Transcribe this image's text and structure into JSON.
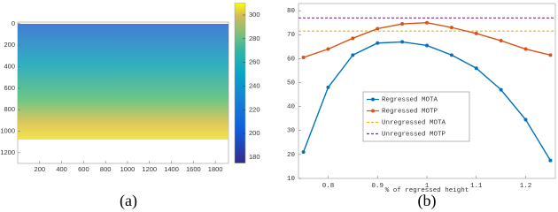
{
  "chart_data": [
    {
      "type": "image",
      "caption": "(a)",
      "xlim": [
        0,
        1920
      ],
      "xticks": [
        200,
        400,
        600,
        800,
        1000,
        1200,
        1400,
        1600,
        1800
      ],
      "ylim": [
        -15,
        1300
      ],
      "y_reverse": true,
      "yticks": [
        0,
        200,
        400,
        600,
        800,
        1000,
        1200
      ],
      "colorbar": {
        "lim": [
          175,
          310
        ],
        "ticks": [
          180,
          200,
          220,
          240,
          260,
          280,
          300
        ]
      }
    },
    {
      "type": "line",
      "caption": "(b)",
      "xlabel": "% of regressed height",
      "x": [
        0.75,
        0.8,
        0.85,
        0.9,
        0.95,
        1.0,
        1.05,
        1.1,
        1.15,
        1.2,
        1.25
      ],
      "series": [
        {
          "name": "Regressed MOTA",
          "color": "#0072bd",
          "values": [
            21,
            48,
            61.5,
            66.5,
            67,
            65.5,
            61.5,
            56,
            47,
            34.5,
            17.5
          ]
        },
        {
          "name": "Regressed MOTP",
          "color": "#d95319",
          "values": [
            60.5,
            64,
            68.5,
            72.5,
            74.5,
            75,
            73,
            70.5,
            67.5,
            64,
            61.5
          ]
        }
      ],
      "hlines": [
        {
          "name": "Unregressed MOTA",
          "color": "#edb120",
          "value": 71.5
        },
        {
          "name": "Unregressed MOTP",
          "color": "#7e2f8e",
          "value": 77
        }
      ],
      "xlim": [
        0.74,
        1.26
      ],
      "xticks": [
        0.8,
        0.9,
        1,
        1.1,
        1.2
      ],
      "ylim": [
        10,
        83
      ],
      "yticks": [
        10,
        20,
        30,
        40,
        50,
        60,
        70,
        80
      ],
      "legend": "center"
    }
  ]
}
